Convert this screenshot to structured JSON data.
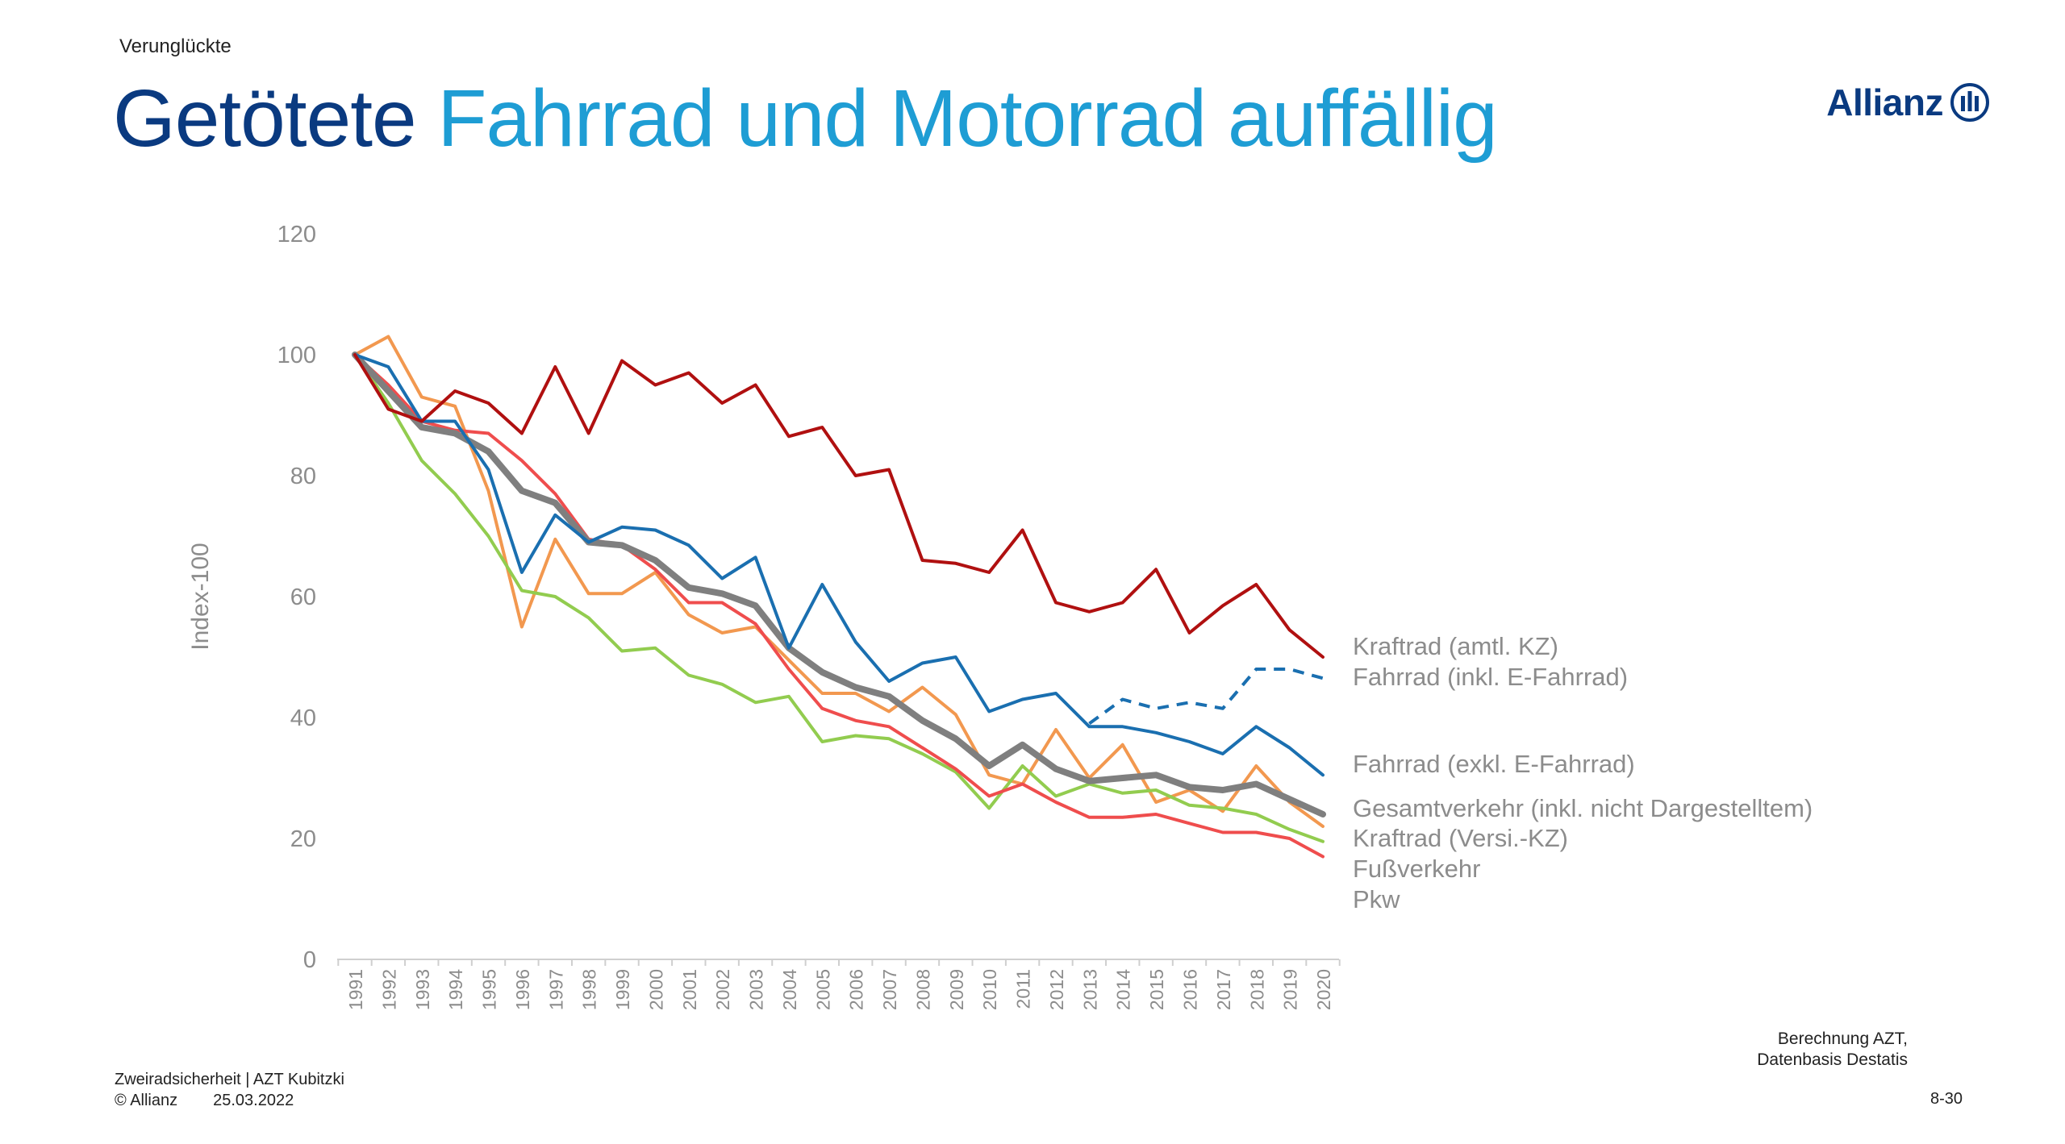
{
  "header": {
    "topic": "Verunglückte",
    "title_part1": "Getötete",
    "title_part2": "Fahrrad und Motorrad auffällig",
    "logo_text": "Allianz"
  },
  "footer": {
    "source_line1": "Berechnung AZT,",
    "source_line2": "Datenbasis Destatis",
    "subject": "Zweiradsicherheit | AZT Kubitzki",
    "copyright": "© Allianz",
    "date": "25.03.2022",
    "page": "8-30"
  },
  "colors": {
    "title_dark": "#0a3a80",
    "title_light": "#1e9dd4",
    "kraftrad_amtl": "#b01010",
    "fahrrad_inkl": "#1a6fb0",
    "fahrrad_exkl": "#1a6fb0",
    "gesamt": "#7f7f7f",
    "kraftrad_versi": "#ef4d4d",
    "fuss": "#f2984f",
    "pkw": "#92cc4f"
  },
  "chart_data": {
    "type": "line",
    "ylabel": "Index-100",
    "xlabel": "",
    "ylim": [
      0,
      120
    ],
    "yticks": [
      0,
      20,
      40,
      60,
      80,
      100,
      120
    ],
    "grid": false,
    "legend": "right, inline labels",
    "x": [
      "1991",
      "1992",
      "1993",
      "1994",
      "1995",
      "1996",
      "1997",
      "1998",
      "1999",
      "2000",
      "2001",
      "2002",
      "2003",
      "2004",
      "2005",
      "2006",
      "2007",
      "2008",
      "2009",
      "2010",
      "2011",
      "2012",
      "2013",
      "2014",
      "2015",
      "2016",
      "2017",
      "2018",
      "2019",
      "2020"
    ],
    "series": [
      {
        "name": "Kraftrad (amtl. KZ)",
        "color_key": "kraftrad_amtl",
        "dashed": false,
        "values": [
          100,
          91,
          89,
          94,
          92,
          87,
          98,
          87,
          99,
          95,
          97,
          92,
          95,
          86.5,
          88,
          80,
          81,
          66,
          65.5,
          64,
          71,
          59,
          57.5,
          59,
          64.5,
          54,
          58.5,
          62,
          54.5,
          50
        ]
      },
      {
        "name": "Fahrrad (inkl. E-Fahrrad)",
        "color_key": "fahrrad_inkl",
        "dashed": true,
        "values": [
          null,
          null,
          null,
          null,
          null,
          null,
          null,
          null,
          null,
          null,
          null,
          null,
          null,
          null,
          null,
          null,
          null,
          null,
          null,
          null,
          null,
          null,
          39,
          43,
          41.5,
          42.5,
          41.5,
          48,
          48,
          46.5
        ]
      },
      {
        "name": "Fahrrad (exkl. E-Fahrrad)",
        "color_key": "fahrrad_exkl",
        "dashed": false,
        "values": [
          100,
          98,
          89,
          89,
          81,
          64,
          73.5,
          69,
          71.5,
          71,
          68.5,
          63,
          66.5,
          51.5,
          62,
          52.5,
          46,
          49,
          50,
          41,
          43,
          44,
          38.5,
          38.5,
          37.5,
          36,
          34,
          38.5,
          35,
          30.5
        ]
      },
      {
        "name": "Gesamtverkehr (inkl. nicht Dargestelltem)",
        "color_key": "gesamt",
        "dashed": false,
        "values": [
          100,
          94,
          88,
          87,
          84,
          77.5,
          75.5,
          69,
          68.5,
          66,
          61.5,
          60.5,
          58.5,
          51.5,
          47.5,
          45,
          43.5,
          39.5,
          36.5,
          32,
          35.5,
          31.5,
          29.5,
          30,
          30.5,
          28.5,
          28,
          29,
          26.5,
          24
        ]
      },
      {
        "name": "Kraftrad (Versi.-KZ)",
        "color_key": "kraftrad_versi",
        "dashed": false,
        "values": [
          100,
          95,
          89,
          87.5,
          87,
          82.5,
          77,
          69.5,
          68.5,
          64.5,
          59,
          59,
          55.5,
          48,
          41.5,
          39.5,
          38.5,
          35,
          31.5,
          27,
          29,
          26,
          23.5,
          23.5,
          24,
          22.5,
          21,
          21,
          20,
          17
        ]
      },
      {
        "name": "Fußverkehr",
        "color_key": "fuss",
        "dashed": false,
        "values": [
          100,
          103,
          93,
          91.5,
          77.5,
          55,
          69.5,
          60.5,
          60.5,
          64,
          57,
          54,
          55,
          49.5,
          44,
          44,
          41,
          45,
          40.5,
          30.5,
          29,
          38,
          30,
          35.5,
          26,
          28,
          24.5,
          32,
          26,
          22
        ]
      },
      {
        "name": "Pkw",
        "color_key": "pkw",
        "dashed": false,
        "values": [
          100,
          92,
          82.5,
          77,
          70,
          61,
          60,
          56.5,
          51,
          51.5,
          47,
          45.5,
          42.5,
          43.5,
          36,
          37,
          36.5,
          34,
          31,
          25,
          32,
          27,
          29,
          27.5,
          28,
          25.5,
          25,
          24,
          21.5,
          19.5
        ]
      }
    ],
    "legend_order": [
      "Kraftrad (amtl. KZ)",
      "Fahrrad (inkl. E-Fahrrad)",
      "Fahrrad (exkl. E-Fahrrad)",
      "Gesamtverkehr (inkl. nicht Dargestelltem)",
      "Kraftrad (Versi.-KZ)",
      "Fußverkehr",
      "Pkw"
    ]
  }
}
